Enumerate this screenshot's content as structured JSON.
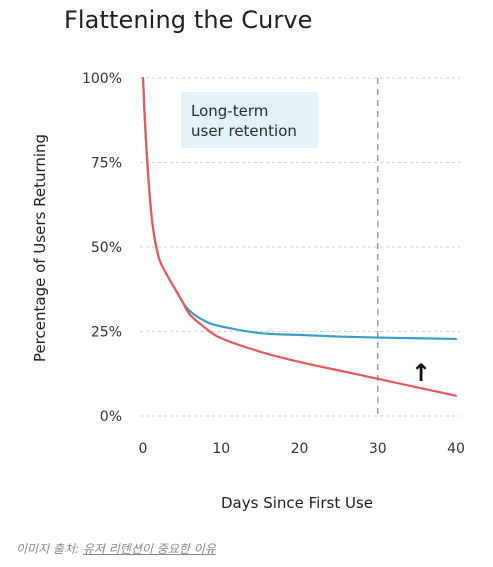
{
  "chart_data": {
    "type": "line",
    "title": "Flattening the Curve",
    "xlabel": "Days Since First Use",
    "ylabel": "Percentage of Users Returning",
    "x_ticks": [
      0,
      10,
      20,
      30,
      40
    ],
    "y_ticks": [
      0,
      25,
      50,
      75,
      100
    ],
    "y_tick_labels": [
      "0%",
      "25%",
      "50%",
      "75%",
      "100%"
    ],
    "xlim": [
      0,
      40
    ],
    "ylim": [
      0,
      100
    ],
    "grid": "horizontal dashed",
    "reference_line": {
      "x": 30,
      "style": "dashed"
    },
    "annotation": {
      "text_line1": "Long-term",
      "text_line2": "user retention",
      "box_color": "#e3f1f8"
    },
    "arrow_symbol": "↑",
    "series": [
      {
        "color": "#e35b5b",
        "x": [
          0,
          0.3,
          0.7,
          1.2,
          2,
          3,
          4,
          5,
          6,
          8,
          10,
          15,
          20,
          25,
          30,
          35,
          40
        ],
        "y": [
          100,
          85,
          70,
          57,
          47,
          42,
          38,
          34,
          30,
          26,
          23,
          19,
          16,
          13.5,
          11,
          8.5,
          6
        ]
      },
      {
        "color": "#3aa0c6",
        "x": [
          0,
          0.3,
          0.7,
          1.2,
          2,
          3,
          4,
          5,
          6,
          8,
          10,
          15,
          20,
          25,
          30,
          35,
          40
        ],
        "y": [
          100,
          85,
          70,
          57,
          47,
          42,
          38,
          34,
          31,
          28,
          26.5,
          24.5,
          24,
          23.5,
          23.2,
          23,
          22.8
        ]
      }
    ]
  },
  "caption": {
    "prefix": "이미지 출처: ",
    "source": "유저 리텐션이 중요한 이유"
  }
}
